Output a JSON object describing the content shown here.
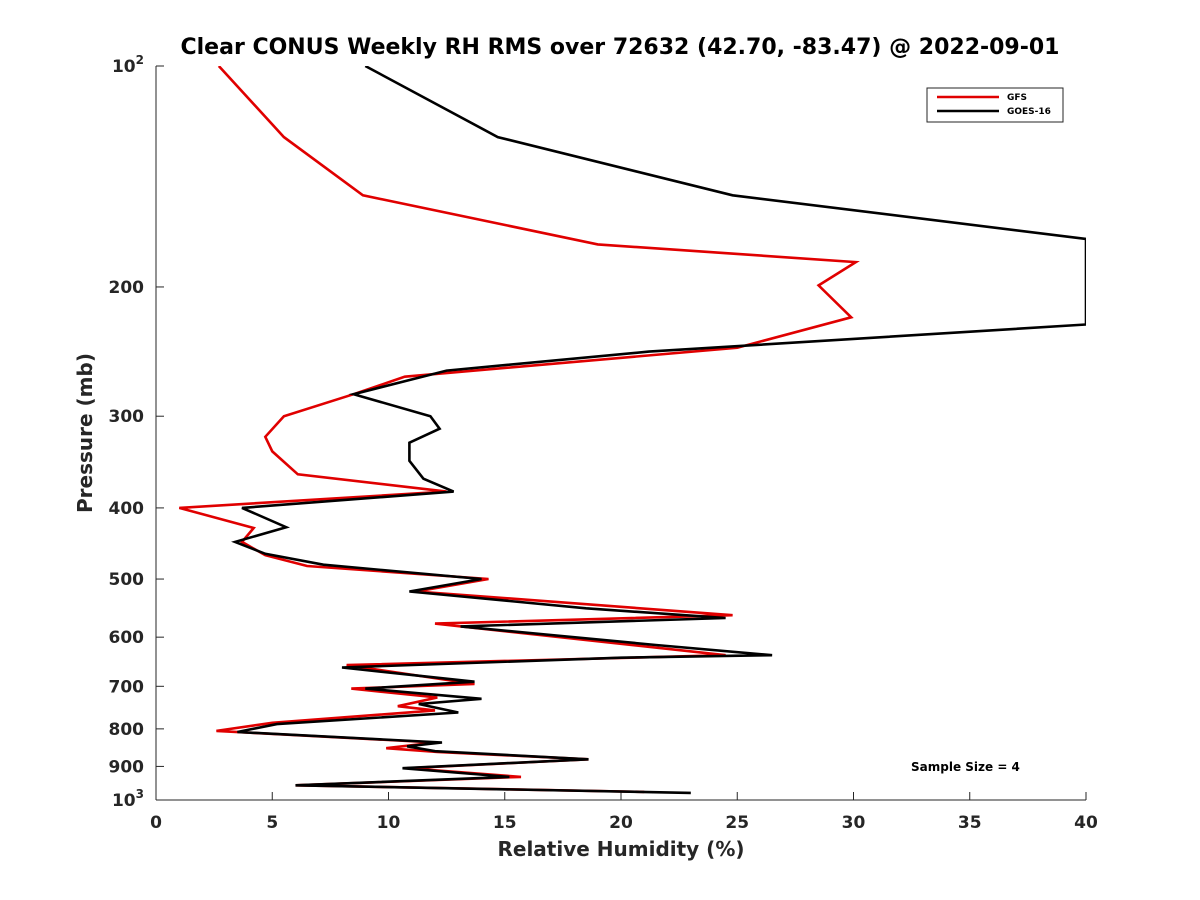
{
  "chart_data": {
    "type": "line",
    "title": "Clear CONUS Weekly RH RMS over 72632 (42.70, -83.47) @ 2022-09-01",
    "xlabel": "Relative Humidity (%)",
    "ylabel": "Pressure (mb)",
    "xlim": [
      0,
      40
    ],
    "ylim": [
      100,
      1000
    ],
    "y_scale": "log",
    "y_reversed": true,
    "x_ticks": [
      "0",
      "5",
      "10",
      "15",
      "20",
      "25",
      "30",
      "35",
      "40"
    ],
    "y_ticks": [
      {
        "value": 100,
        "base": "10",
        "exp": "2"
      },
      {
        "value": 200,
        "label": "200"
      },
      {
        "value": 300,
        "label": "300"
      },
      {
        "value": 400,
        "label": "400"
      },
      {
        "value": 500,
        "label": "500"
      },
      {
        "value": 600,
        "label": "600"
      },
      {
        "value": 700,
        "label": "700"
      },
      {
        "value": 800,
        "label": "800"
      },
      {
        "value": 900,
        "label": "900"
      },
      {
        "value": 1000,
        "base": "10",
        "exp": "3"
      }
    ],
    "legend_position": "top-right",
    "annotation": "Sample Size = 4",
    "grid": false,
    "series": [
      {
        "name": "GFS",
        "color": "#e00000",
        "points": [
          [
            2.7,
            100
          ],
          [
            5.5,
            125
          ],
          [
            8.9,
            150
          ],
          [
            19.0,
            175
          ],
          [
            30.1,
            185
          ],
          [
            28.5,
            199
          ],
          [
            29.9,
            220
          ],
          [
            25.0,
            242
          ],
          [
            10.7,
            265
          ],
          [
            8.5,
            280
          ],
          [
            5.5,
            300
          ],
          [
            4.7,
            320
          ],
          [
            5.0,
            335
          ],
          [
            6.1,
            360
          ],
          [
            12.5,
            380
          ],
          [
            1.0,
            400
          ],
          [
            4.2,
            426
          ],
          [
            3.7,
            445
          ],
          [
            4.7,
            464
          ],
          [
            6.5,
            480
          ],
          [
            14.3,
            500
          ],
          [
            11.2,
            520
          ],
          [
            24.8,
            560
          ],
          [
            12.0,
            575
          ],
          [
            24.5,
            635
          ],
          [
            8.2,
            655
          ],
          [
            13.7,
            695
          ],
          [
            8.4,
            705
          ],
          [
            12.1,
            725
          ],
          [
            10.4,
            745
          ],
          [
            12.0,
            755
          ],
          [
            5.0,
            785
          ],
          [
            2.6,
            805
          ],
          [
            12.0,
            835
          ],
          [
            9.9,
            850
          ],
          [
            12.1,
            860
          ],
          [
            18.6,
            880
          ],
          [
            10.8,
            905
          ],
          [
            15.7,
            930
          ],
          [
            6.0,
            955
          ],
          [
            21.0,
            975
          ]
        ]
      },
      {
        "name": "GOES-16",
        "color": "#000000",
        "points": [
          [
            9.0,
            100
          ],
          [
            14.7,
            125
          ],
          [
            24.8,
            150
          ],
          [
            40.0,
            172
          ],
          [
            40.0,
            225
          ],
          [
            21.2,
            245
          ],
          [
            12.5,
            260
          ],
          [
            8.5,
            280
          ],
          [
            11.8,
            300
          ],
          [
            12.2,
            312
          ],
          [
            10.9,
            326
          ],
          [
            10.9,
            345
          ],
          [
            11.5,
            365
          ],
          [
            12.8,
            380
          ],
          [
            3.7,
            400
          ],
          [
            5.6,
            425
          ],
          [
            3.4,
            445
          ],
          [
            4.7,
            462
          ],
          [
            7.2,
            478
          ],
          [
            14.0,
            500
          ],
          [
            10.9,
            520
          ],
          [
            18.5,
            548
          ],
          [
            24.5,
            565
          ],
          [
            13.1,
            580
          ],
          [
            21.5,
            615
          ],
          [
            26.5,
            635
          ],
          [
            20.0,
            640
          ],
          [
            8.0,
            660
          ],
          [
            13.7,
            690
          ],
          [
            9.0,
            705
          ],
          [
            14.0,
            728
          ],
          [
            11.3,
            740
          ],
          [
            13.0,
            760
          ],
          [
            5.2,
            788
          ],
          [
            3.5,
            808
          ],
          [
            12.3,
            835
          ],
          [
            10.8,
            845
          ],
          [
            12.0,
            858
          ],
          [
            18.6,
            880
          ],
          [
            10.6,
            905
          ],
          [
            15.2,
            930
          ],
          [
            6.0,
            955
          ],
          [
            23.0,
            978
          ]
        ]
      }
    ]
  }
}
